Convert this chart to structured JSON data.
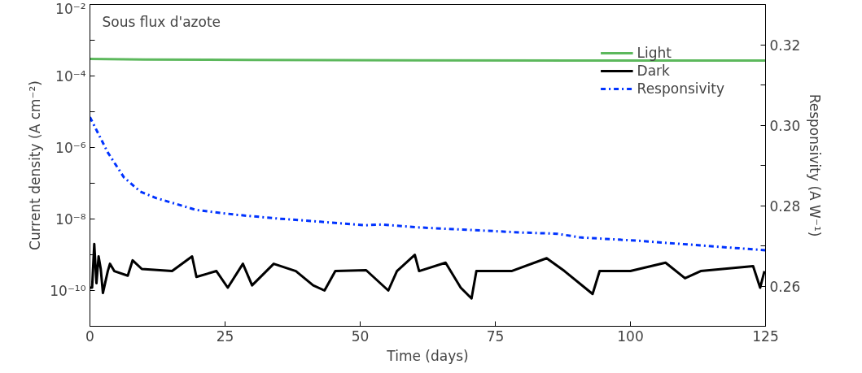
{
  "chart_data": {
    "type": "line",
    "xlabel": "Time (days)",
    "ylabel": "Current density (A cm⁻²)",
    "y2label": "Responsivity (A W⁻¹)",
    "annotations": [
      "Sous flux d'azote"
    ],
    "log": "y",
    "grid": false,
    "legend": "top right",
    "xlim": [
      0,
      125
    ],
    "xticks": [
      0,
      25,
      50,
      75,
      100,
      125
    ],
    "ylim": [
      1e-11,
      0.01
    ],
    "yticks": [
      {
        "value": 0.01,
        "label": "10⁻²"
      },
      {
        "value": 0.001,
        "label": null
      },
      {
        "value": 0.0001,
        "label": "10⁻⁴"
      },
      {
        "value": 1e-05,
        "label": null
      },
      {
        "value": 1e-06,
        "label": "10⁻⁶"
      },
      {
        "value": 1e-07,
        "label": null
      },
      {
        "value": 1e-08,
        "label": "10⁻⁸"
      },
      {
        "value": 1e-09,
        "label": null
      },
      {
        "value": 1e-10,
        "label": "10⁻¹⁰"
      },
      {
        "value": 1e-11,
        "label": null
      }
    ],
    "y2lim": [
      0.25,
      0.33
    ],
    "y2ticks": [
      {
        "value": 0.26,
        "label": "0.26"
      },
      {
        "value": 0.27,
        "label": null
      },
      {
        "value": 0.28,
        "label": "0.28"
      },
      {
        "value": 0.29,
        "label": null
      },
      {
        "value": 0.3,
        "label": "0.30"
      },
      {
        "value": 0.31,
        "label": null
      },
      {
        "value": 0.32,
        "label": "0.32"
      }
    ],
    "series": [
      {
        "name": "Light",
        "color": "#5cb85c",
        "line_style": "solid",
        "x": [
          0,
          10,
          30,
          60,
          90,
          125
        ],
        "values": [
          0.0003,
          0.00029,
          0.00028,
          0.000275,
          0.00027,
          0.00027
        ]
      },
      {
        "name": "Dark",
        "color": "#000000",
        "line_style": "solid",
        "x": [
          0,
          0.4,
          0.8,
          1.2,
          1.6,
          2.0,
          2.4,
          3.3,
          3.7,
          4.5,
          7.0,
          7.9,
          9.6,
          15.2,
          18.9,
          19.7,
          23.4,
          25.5,
          28.3,
          30.0,
          34.0,
          38.1,
          41.3,
          43.4,
          45.4,
          51.1,
          55.2,
          56.8,
          60.1,
          60.9,
          65.8,
          68.6,
          70.6,
          71.5,
          78,
          84.5,
          87.8,
          93.0,
          94.3,
          100,
          106.5,
          110.1,
          113,
          122.7,
          124,
          124.8
        ],
        "values": [
          1.2e-10,
          1.2e-10,
          2e-09,
          1.6e-10,
          9e-10,
          4e-10,
          8.5e-11,
          3.5e-10,
          5.6e-10,
          3.5e-10,
          2.6e-10,
          7e-10,
          4e-10,
          3.5e-10,
          9e-10,
          2.4e-10,
          3.5e-10,
          1.2e-10,
          5.6e-10,
          1.4e-10,
          5.6e-10,
          3.5e-10,
          1.4e-10,
          1e-10,
          3.5e-10,
          3.7e-10,
          1e-10,
          3.5e-10,
          1e-09,
          3.5e-10,
          6e-10,
          1.2e-10,
          6e-11,
          3.5e-10,
          3.5e-10,
          8e-10,
          3.5e-10,
          8e-11,
          3.5e-10,
          3.5e-10,
          6e-10,
          2.2e-10,
          3.5e-10,
          4.8e-10,
          1.2e-10,
          3.5e-10
        ]
      },
      {
        "name": "Responsivity",
        "color": "#0033ff",
        "line_style": "dashdot",
        "axis": "y2",
        "x": [
          0,
          3.3,
          6.3,
          9.3,
          12.2,
          19.7,
          27.2,
          34.6,
          42.6,
          50.8,
          53.9,
          60.5,
          80,
          86.5,
          90.6,
          101,
          125
        ],
        "values": [
          0.302,
          0.2932,
          0.287,
          0.2835,
          0.2819,
          0.2789,
          0.2777,
          0.2768,
          0.276,
          0.2751,
          0.2753,
          0.2746,
          0.2733,
          0.273,
          0.2721,
          0.2713,
          0.2689
        ]
      }
    ]
  }
}
